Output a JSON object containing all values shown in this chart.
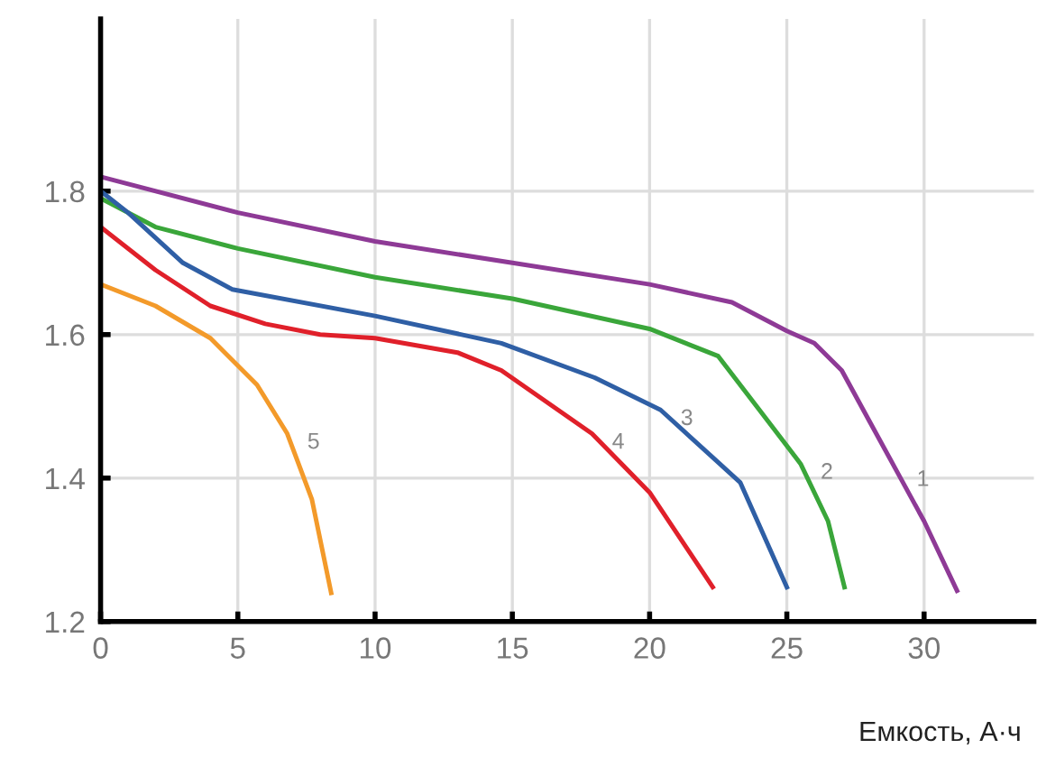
{
  "chart_data": {
    "type": "line",
    "xlabel": "Емкость, А·ч",
    "xlim": [
      0,
      34
    ],
    "ylim": [
      1.2,
      2.04
    ],
    "xticks": [
      0,
      5,
      10,
      15,
      20,
      25,
      30
    ],
    "yticks": [
      1.2,
      1.4,
      1.6,
      1.8
    ],
    "grid": true,
    "legend": false,
    "marker": "none",
    "line_style": "solid",
    "series": [
      {
        "name": "1",
        "color": "#8e3a96",
        "x": [
          0,
          5,
          10,
          15,
          20,
          23,
          25,
          26,
          27,
          28,
          29,
          30,
          31.2
        ],
        "values": [
          1.82,
          1.77,
          1.73,
          1.7,
          1.67,
          1.645,
          1.605,
          1.588,
          1.55,
          1.48,
          1.41,
          1.34,
          1.243
        ]
      },
      {
        "name": "2",
        "color": "#3aa63a",
        "x": [
          0,
          2,
          5,
          10,
          15,
          20,
          22.5,
          24,
          25.5,
          26.5,
          27.1
        ],
        "values": [
          1.79,
          1.75,
          1.72,
          1.68,
          1.65,
          1.608,
          1.57,
          1.495,
          1.42,
          1.34,
          1.248
        ]
      },
      {
        "name": "3",
        "color": "#2f5fa5",
        "x": [
          0,
          1,
          3,
          4.8,
          10,
          14.6,
          18,
          20.4,
          23.3,
          25
        ],
        "values": [
          1.8,
          1.77,
          1.7,
          1.663,
          1.626,
          1.588,
          1.54,
          1.495,
          1.394,
          1.248
        ]
      },
      {
        "name": "4",
        "color": "#e0202a",
        "x": [
          0,
          2,
          4,
          6,
          8,
          10,
          13,
          14.6,
          17.9,
          20,
          22.3
        ],
        "values": [
          1.75,
          1.69,
          1.64,
          1.615,
          1.6,
          1.595,
          1.575,
          1.55,
          1.462,
          1.38,
          1.248
        ]
      },
      {
        "name": "5",
        "color": "#f39a2a",
        "x": [
          0,
          2,
          4,
          5.7,
          6.8,
          7.7,
          8.4
        ],
        "values": [
          1.67,
          1.64,
          1.595,
          1.53,
          1.462,
          1.37,
          1.24
        ]
      }
    ]
  }
}
